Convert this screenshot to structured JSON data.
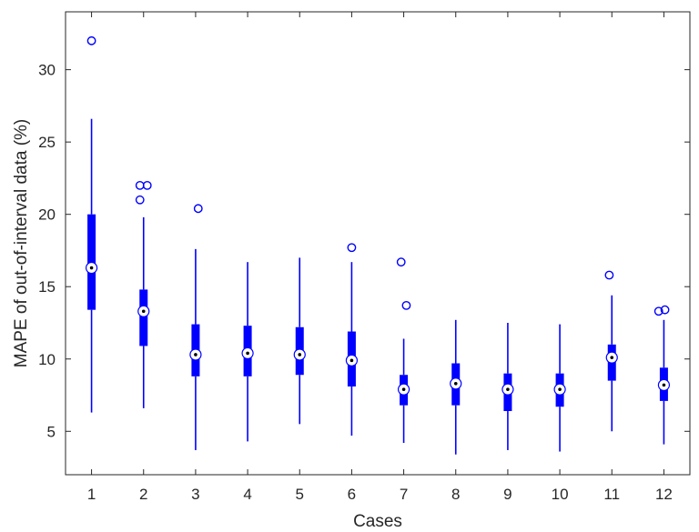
{
  "chart_data": {
    "type": "box",
    "title": "",
    "xlabel": "Cases",
    "ylabel": "MAPE of out-of-interval data (%)",
    "ylim": [
      2,
      34
    ],
    "yticks": [
      5,
      10,
      15,
      20,
      25,
      30
    ],
    "categories": [
      "1",
      "2",
      "3",
      "4",
      "5",
      "6",
      "7",
      "8",
      "9",
      "10",
      "11",
      "12"
    ],
    "color": "#0000ff",
    "grid": false,
    "boxes": [
      {
        "category": "1",
        "whisker_low": 6.3,
        "q1": 13.4,
        "median": 16.3,
        "q3": 20.0,
        "whisker_high": 26.6,
        "outliers": [
          {
            "value": 32.0,
            "offset": 0
          }
        ]
      },
      {
        "category": "2",
        "whisker_low": 6.6,
        "q1": 10.9,
        "median": 13.3,
        "q3": 14.8,
        "whisker_high": 19.8,
        "outliers": [
          {
            "value": 21.0,
            "offset": -0.07
          },
          {
            "value": 22.0,
            "offset": -0.07
          },
          {
            "value": 22.0,
            "offset": 0.07
          }
        ]
      },
      {
        "category": "3",
        "whisker_low": 3.7,
        "q1": 8.8,
        "median": 10.3,
        "q3": 12.4,
        "whisker_high": 17.6,
        "outliers": [
          {
            "value": 20.4,
            "offset": 0.05
          }
        ]
      },
      {
        "category": "4",
        "whisker_low": 4.3,
        "q1": 8.8,
        "median": 10.4,
        "q3": 12.3,
        "whisker_high": 16.7,
        "outliers": []
      },
      {
        "category": "5",
        "whisker_low": 5.5,
        "q1": 8.9,
        "median": 10.3,
        "q3": 12.2,
        "whisker_high": 17.0,
        "outliers": []
      },
      {
        "category": "6",
        "whisker_low": 4.7,
        "q1": 8.1,
        "median": 9.9,
        "q3": 11.9,
        "whisker_high": 16.7,
        "outliers": [
          {
            "value": 17.7,
            "offset": 0
          }
        ]
      },
      {
        "category": "7",
        "whisker_low": 4.2,
        "q1": 6.8,
        "median": 7.9,
        "q3": 8.9,
        "whisker_high": 11.4,
        "outliers": [
          {
            "value": 13.7,
            "offset": 0.05
          },
          {
            "value": 16.7,
            "offset": -0.05
          }
        ]
      },
      {
        "category": "8",
        "whisker_low": 3.4,
        "q1": 6.8,
        "median": 8.3,
        "q3": 9.7,
        "whisker_high": 12.7,
        "outliers": []
      },
      {
        "category": "9",
        "whisker_low": 3.7,
        "q1": 6.4,
        "median": 7.9,
        "q3": 9.0,
        "whisker_high": 12.5,
        "outliers": []
      },
      {
        "category": "10",
        "whisker_low": 3.6,
        "q1": 6.7,
        "median": 7.9,
        "q3": 9.0,
        "whisker_high": 12.4,
        "outliers": []
      },
      {
        "category": "11",
        "whisker_low": 5.0,
        "q1": 8.5,
        "median": 10.1,
        "q3": 11.0,
        "whisker_high": 14.4,
        "outliers": [
          {
            "value": 15.8,
            "offset": -0.05
          }
        ]
      },
      {
        "category": "12",
        "whisker_low": 4.1,
        "q1": 7.1,
        "median": 8.2,
        "q3": 9.4,
        "whisker_high": 12.7,
        "outliers": [
          {
            "value": 13.3,
            "offset": -0.1
          },
          {
            "value": 13.4,
            "offset": 0.02
          }
        ]
      }
    ]
  }
}
